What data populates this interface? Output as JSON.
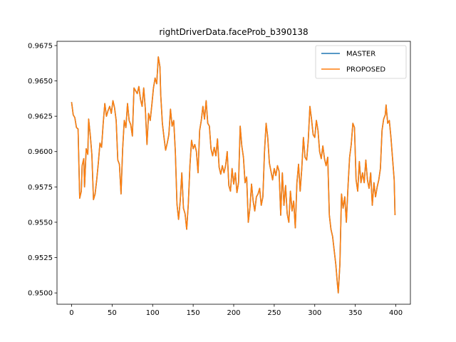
{
  "chart_data": {
    "type": "line",
    "title": "rightDriverData.faceProb_b390138",
    "xlabel": "",
    "ylabel": "",
    "xlim": [
      -18,
      418
    ],
    "ylim": [
      0.9492,
      0.9678
    ],
    "xticks": [
      0,
      50,
      100,
      150,
      200,
      250,
      300,
      350,
      400
    ],
    "yticks": [
      0.95,
      0.9525,
      0.955,
      0.9575,
      0.96,
      0.9625,
      0.965,
      0.9675
    ],
    "ytick_labels": [
      "0.9500",
      "0.9525",
      "0.9550",
      "0.9575",
      "0.9600",
      "0.9625",
      "0.9650",
      "0.9675"
    ],
    "legend_position": "top-right",
    "grid": false,
    "series": [
      {
        "name": "MASTER",
        "color": "#1f77b4",
        "points": [
          [
            0,
            0.9635
          ],
          [
            2,
            0.9626
          ],
          [
            4,
            0.9624
          ],
          [
            6,
            0.9617
          ],
          [
            8,
            0.9616
          ],
          [
            10,
            0.9567
          ],
          [
            12,
            0.9572
          ],
          [
            13,
            0.959
          ],
          [
            15,
            0.9595
          ],
          [
            16,
            0.9575
          ],
          [
            18,
            0.9602
          ],
          [
            20,
            0.9598
          ],
          [
            21,
            0.9623
          ],
          [
            23,
            0.9612
          ],
          [
            25,
            0.9598
          ],
          [
            27,
            0.9566
          ],
          [
            29,
            0.957
          ],
          [
            31,
            0.958
          ],
          [
            33,
            0.9592
          ],
          [
            35,
            0.9606
          ],
          [
            37,
            0.9603
          ],
          [
            39,
            0.962
          ],
          [
            41,
            0.9634
          ],
          [
            43,
            0.9625
          ],
          [
            45,
            0.9629
          ],
          [
            47,
            0.9632
          ],
          [
            49,
            0.9627
          ],
          [
            51,
            0.9636
          ],
          [
            53,
            0.9631
          ],
          [
            55,
            0.9622
          ],
          [
            57,
            0.9594
          ],
          [
            59,
            0.9591
          ],
          [
            61,
            0.957
          ],
          [
            63,
            0.9602
          ],
          [
            65,
            0.9622
          ],
          [
            67,
            0.9617
          ],
          [
            69,
            0.9634
          ],
          [
            71,
            0.9622
          ],
          [
            73,
            0.9619
          ],
          [
            75,
            0.9611
          ],
          [
            77,
            0.9645
          ],
          [
            79,
            0.9643
          ],
          [
            81,
            0.9641
          ],
          [
            83,
            0.9646
          ],
          [
            85,
            0.9637
          ],
          [
            87,
            0.9632
          ],
          [
            89,
            0.9645
          ],
          [
            91,
            0.963
          ],
          [
            93,
            0.9605
          ],
          [
            95,
            0.9627
          ],
          [
            97,
            0.9622
          ],
          [
            99,
            0.9633
          ],
          [
            101,
            0.9645
          ],
          [
            103,
            0.9652
          ],
          [
            105,
            0.9648
          ],
          [
            107,
            0.9667
          ],
          [
            109,
            0.966
          ],
          [
            110,
            0.964
          ],
          [
            112,
            0.962
          ],
          [
            114,
            0.961
          ],
          [
            116,
            0.9601
          ],
          [
            118,
            0.9606
          ],
          [
            120,
            0.9612
          ],
          [
            122,
            0.963
          ],
          [
            124,
            0.9618
          ],
          [
            126,
            0.9622
          ],
          [
            128,
            0.96
          ],
          [
            130,
            0.9563
          ],
          [
            132,
            0.9552
          ],
          [
            134,
            0.9565
          ],
          [
            136,
            0.9585
          ],
          [
            138,
            0.956
          ],
          [
            140,
            0.9556
          ],
          [
            142,
            0.9545
          ],
          [
            144,
            0.9563
          ],
          [
            146,
            0.959
          ],
          [
            148,
            0.9608
          ],
          [
            150,
            0.9602
          ],
          [
            152,
            0.9605
          ],
          [
            154,
            0.96
          ],
          [
            156,
            0.9585
          ],
          [
            158,
            0.9615
          ],
          [
            160,
            0.9622
          ],
          [
            162,
            0.9632
          ],
          [
            164,
            0.9623
          ],
          [
            166,
            0.9636
          ],
          [
            168,
            0.962
          ],
          [
            170,
            0.9618
          ],
          [
            172,
            0.9602
          ],
          [
            174,
            0.9597
          ],
          [
            176,
            0.9603
          ],
          [
            178,
            0.9597
          ],
          [
            180,
            0.9609
          ],
          [
            182,
            0.9589
          ],
          [
            184,
            0.9584
          ],
          [
            186,
            0.959
          ],
          [
            188,
            0.9585
          ],
          [
            190,
            0.959
          ],
          [
            192,
            0.96
          ],
          [
            194,
            0.9576
          ],
          [
            196,
            0.9572
          ],
          [
            198,
            0.9588
          ],
          [
            200,
            0.9577
          ],
          [
            202,
            0.9585
          ],
          [
            204,
            0.9571
          ],
          [
            206,
            0.9578
          ],
          [
            208,
            0.9618
          ],
          [
            210,
            0.9604
          ],
          [
            212,
            0.9596
          ],
          [
            214,
            0.9578
          ],
          [
            216,
            0.9582
          ],
          [
            218,
            0.955
          ],
          [
            220,
            0.956
          ],
          [
            222,
            0.9577
          ],
          [
            224,
            0.9565
          ],
          [
            226,
            0.9558
          ],
          [
            228,
            0.9568
          ],
          [
            230,
            0.957
          ],
          [
            232,
            0.9574
          ],
          [
            234,
            0.9562
          ],
          [
            236,
            0.9568
          ],
          [
            238,
            0.96
          ],
          [
            240,
            0.962
          ],
          [
            242,
            0.961
          ],
          [
            244,
            0.9592
          ],
          [
            246,
            0.9586
          ],
          [
            248,
            0.958
          ],
          [
            250,
            0.9588
          ],
          [
            252,
            0.9583
          ],
          [
            254,
            0.959
          ],
          [
            256,
            0.9586
          ],
          [
            258,
            0.9555
          ],
          [
            260,
            0.9585
          ],
          [
            262,
            0.9562
          ],
          [
            264,
            0.9576
          ],
          [
            266,
            0.9556
          ],
          [
            268,
            0.955
          ],
          [
            270,
            0.9572
          ],
          [
            272,
            0.9558
          ],
          [
            274,
            0.9565
          ],
          [
            276,
            0.9546
          ],
          [
            278,
            0.9578
          ],
          [
            280,
            0.9591
          ],
          [
            282,
            0.9572
          ],
          [
            284,
            0.9588
          ],
          [
            286,
            0.961
          ],
          [
            288,
            0.9596
          ],
          [
            290,
            0.9594
          ],
          [
            292,
            0.9608
          ],
          [
            294,
            0.9632
          ],
          [
            296,
            0.9623
          ],
          [
            298,
            0.9612
          ],
          [
            300,
            0.961
          ],
          [
            302,
            0.9622
          ],
          [
            304,
            0.9615
          ],
          [
            306,
            0.96
          ],
          [
            308,
            0.9595
          ],
          [
            310,
            0.9604
          ],
          [
            312,
            0.9595
          ],
          [
            314,
            0.959
          ],
          [
            316,
            0.9596
          ],
          [
            318,
            0.9555
          ],
          [
            320,
            0.9545
          ],
          [
            322,
            0.954
          ],
          [
            324,
            0.953
          ],
          [
            326,
            0.952
          ],
          [
            328,
            0.9506
          ],
          [
            329,
            0.95
          ],
          [
            331,
            0.952
          ],
          [
            333,
            0.957
          ],
          [
            335,
            0.956
          ],
          [
            337,
            0.9568
          ],
          [
            339,
            0.955
          ],
          [
            341,
            0.9575
          ],
          [
            343,
            0.9596
          ],
          [
            345,
            0.9605
          ],
          [
            347,
            0.962
          ],
          [
            349,
            0.9617
          ],
          [
            351,
            0.958
          ],
          [
            353,
            0.9572
          ],
          [
            355,
            0.9593
          ],
          [
            357,
            0.9578
          ],
          [
            359,
            0.9585
          ],
          [
            361,
            0.9578
          ],
          [
            363,
            0.9594
          ],
          [
            365,
            0.958
          ],
          [
            367,
            0.9574
          ],
          [
            369,
            0.9585
          ],
          [
            371,
            0.9562
          ],
          [
            373,
            0.9578
          ],
          [
            375,
            0.9568
          ],
          [
            377,
            0.9575
          ],
          [
            379,
            0.958
          ],
          [
            381,
            0.9588
          ],
          [
            383,
            0.9615
          ],
          [
            385,
            0.9623
          ],
          [
            387,
            0.9626
          ],
          [
            388,
            0.9633
          ],
          [
            390,
            0.962
          ],
          [
            392,
            0.9622
          ],
          [
            394,
            0.961
          ],
          [
            396,
            0.9595
          ],
          [
            398,
            0.958
          ],
          [
            399,
            0.9555
          ]
        ]
      },
      {
        "name": "PROPOSED",
        "color": "#ff7f0e",
        "same_as": "MASTER"
      }
    ]
  }
}
